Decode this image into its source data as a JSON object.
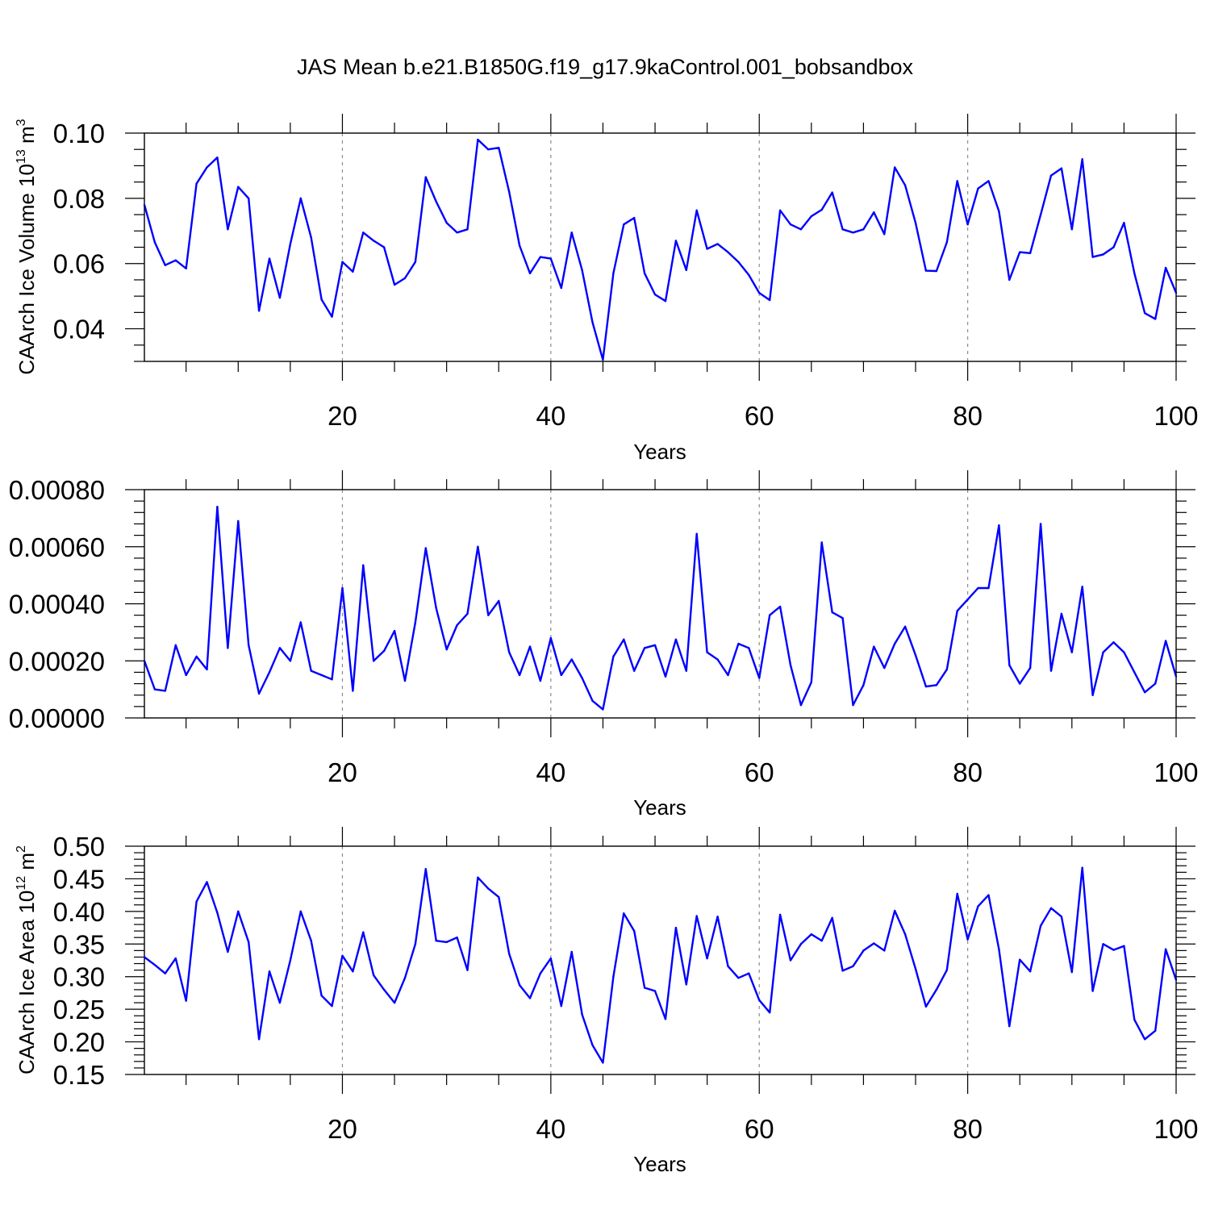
{
  "title": "JAS Mean b.e21.B1850G.f19_g17.9kaControl.001_bobsandbox",
  "colors": {
    "line": "#0000ff",
    "frame": "#000000",
    "grid": "#8c8c8c"
  },
  "chart_data": [
    {
      "type": "line",
      "xlabel": "Years",
      "ylabel": "CAArch Ice Volume 10",
      "ylabel_sup": "13",
      "ylabel_unit": " m",
      "ylabel_unit_sup": "3",
      "xlim": [
        1,
        100
      ],
      "ylim": [
        0.03,
        0.1
      ],
      "xticks": [
        "20",
        "40",
        "60",
        "80",
        "100"
      ],
      "yticks": [
        "0.04",
        "0.06",
        "0.08",
        "0.10"
      ],
      "x_grid": [
        20,
        40,
        60,
        80
      ],
      "series": [
        {
          "name": "ice_volume",
          "values": [
            0.078,
            0.0665,
            0.0595,
            0.061,
            0.0585,
            0.0845,
            0.0895,
            0.0925,
            0.0705,
            0.0835,
            0.08,
            0.0455,
            0.0615,
            0.0495,
            0.066,
            0.08,
            0.068,
            0.049,
            0.0437,
            0.0605,
            0.0575,
            0.0695,
            0.067,
            0.065,
            0.0535,
            0.0555,
            0.0605,
            0.0865,
            0.079,
            0.0725,
            0.0695,
            0.0705,
            0.098,
            0.095,
            0.0955,
            0.082,
            0.0655,
            0.057,
            0.062,
            0.0615,
            0.0525,
            0.0695,
            0.058,
            0.042,
            0.0305,
            0.057,
            0.072,
            0.074,
            0.057,
            0.0505,
            0.0485,
            0.067,
            0.058,
            0.0763,
            0.0645,
            0.066,
            0.0635,
            0.0605,
            0.0565,
            0.051,
            0.0488,
            0.0763,
            0.072,
            0.0705,
            0.0745,
            0.0765,
            0.0818,
            0.0705,
            0.0695,
            0.0705,
            0.0757,
            0.069,
            0.0895,
            0.084,
            0.0725,
            0.0578,
            0.0577,
            0.0665,
            0.0853,
            0.072,
            0.083,
            0.0853,
            0.076,
            0.055,
            0.0635,
            0.0632,
            0.075,
            0.087,
            0.0892,
            0.0705,
            0.092,
            0.062,
            0.0628,
            0.065,
            0.0725,
            0.057,
            0.0448,
            0.043,
            0.0587,
            0.051
          ]
        }
      ]
    },
    {
      "type": "line",
      "xlabel": "Years",
      "ylabel": "",
      "xlim": [
        1,
        100
      ],
      "ylim": [
        0.0,
        0.0008
      ],
      "xticks": [
        "20",
        "40",
        "60",
        "80",
        "100"
      ],
      "yticks": [
        "0.00000",
        "0.00020",
        "0.00040",
        "0.00060",
        "0.00080"
      ],
      "x_grid": [
        20,
        40,
        60,
        80
      ],
      "series": [
        {
          "name": "series_2",
          "values": [
            0.0002,
            0.0001,
            9.5e-05,
            0.000255,
            0.00015,
            0.000215,
            0.00017,
            0.00074,
            0.000245,
            0.00069,
            0.000255,
            8.5e-05,
            0.00016,
            0.000245,
            0.0002,
            0.000335,
            0.000165,
            0.00015,
            0.000135,
            0.000455,
            9.5e-05,
            0.000535,
            0.0002,
            0.000235,
            0.000305,
            0.00013,
            0.000335,
            0.000595,
            0.000385,
            0.00024,
            0.000325,
            0.000365,
            0.0006,
            0.00036,
            0.00041,
            0.00023,
            0.00015,
            0.00025,
            0.00013,
            0.00028,
            0.00015,
            0.000205,
            0.00014,
            6e-05,
            3e-05,
            0.000215,
            0.000275,
            0.000165,
            0.000245,
            0.000255,
            0.000145,
            0.000275,
            0.000165,
            0.000645,
            0.00023,
            0.000205,
            0.00015,
            0.00026,
            0.000245,
            0.00014,
            0.00036,
            0.00039,
            0.000185,
            4.5e-05,
            0.000125,
            0.000615,
            0.00037,
            0.00035,
            4.5e-05,
            0.000115,
            0.00025,
            0.000175,
            0.00026,
            0.00032,
            0.00022,
            0.00011,
            0.000115,
            0.00017,
            0.000375,
            0.000415,
            0.000455,
            0.000455,
            0.000675,
            0.000185,
            0.00012,
            0.000175,
            0.00068,
            0.000165,
            0.000365,
            0.00023,
            0.00046,
            8e-05,
            0.00023,
            0.000265,
            0.00023,
            0.00016,
            9e-05,
            0.00012,
            0.00027,
            0.000145
          ]
        }
      ]
    },
    {
      "type": "line",
      "xlabel": "Years",
      "ylabel": "CAArch Ice Area 10",
      "ylabel_sup": "12",
      "ylabel_unit": " m",
      "ylabel_unit_sup": "2",
      "xlim": [
        1,
        100
      ],
      "ylim": [
        0.15,
        0.5
      ],
      "xticks": [
        "20",
        "40",
        "60",
        "80",
        "100"
      ],
      "yticks": [
        "0.15",
        "0.20",
        "0.25",
        "0.30",
        "0.35",
        "0.40",
        "0.45",
        "0.50"
      ],
      "x_grid": [
        20,
        40,
        60,
        80
      ],
      "series": [
        {
          "name": "ice_area",
          "values": [
            0.33,
            0.318,
            0.305,
            0.328,
            0.263,
            0.415,
            0.445,
            0.398,
            0.338,
            0.4,
            0.353,
            0.204,
            0.308,
            0.26,
            0.325,
            0.4,
            0.355,
            0.271,
            0.255,
            0.332,
            0.308,
            0.368,
            0.302,
            0.28,
            0.26,
            0.298,
            0.35,
            0.465,
            0.355,
            0.353,
            0.36,
            0.31,
            0.452,
            0.435,
            0.422,
            0.335,
            0.287,
            0.267,
            0.305,
            0.328,
            0.255,
            0.338,
            0.242,
            0.195,
            0.168,
            0.3,
            0.397,
            0.37,
            0.283,
            0.278,
            0.235,
            0.375,
            0.288,
            0.393,
            0.328,
            0.392,
            0.316,
            0.298,
            0.305,
            0.264,
            0.245,
            0.395,
            0.325,
            0.35,
            0.365,
            0.355,
            0.39,
            0.309,
            0.316,
            0.34,
            0.351,
            0.34,
            0.401,
            0.365,
            0.312,
            0.254,
            0.28,
            0.31,
            0.427,
            0.357,
            0.408,
            0.425,
            0.342,
            0.224,
            0.326,
            0.308,
            0.378,
            0.405,
            0.392,
            0.307,
            0.467,
            0.278,
            0.35,
            0.341,
            0.347,
            0.234,
            0.204,
            0.217,
            0.342,
            0.295
          ]
        }
      ]
    }
  ]
}
